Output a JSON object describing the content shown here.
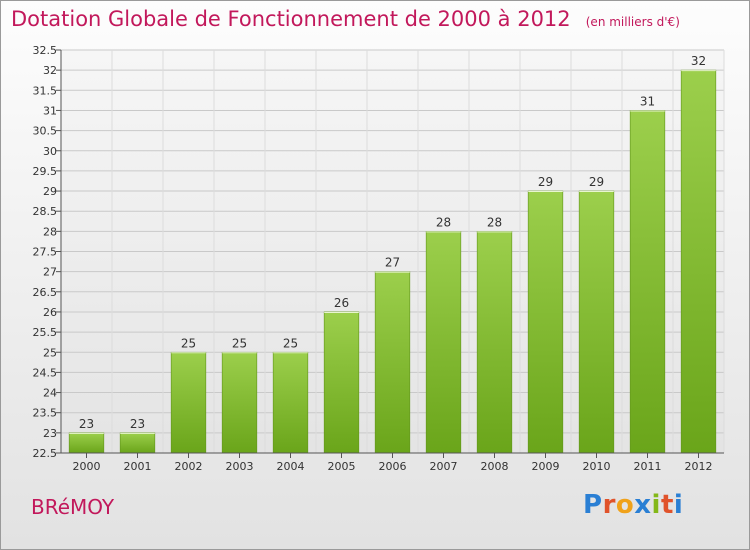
{
  "header": {
    "title": "Dotation Globale de Fonctionnement de 2000 à 2012",
    "unit": "(en milliers d'€)"
  },
  "footer": {
    "commune": "BRéMOY",
    "logo_letters": [
      "P",
      "r",
      "o",
      "x",
      "i",
      "t",
      "i"
    ],
    "logo_colors": [
      "#2a7fd4",
      "#e0532b",
      "#f0a21a",
      "#2a7fd4",
      "#84b819",
      "#e0532b",
      "#2a7fd4"
    ]
  },
  "chart_data": {
    "type": "bar",
    "title": "Dotation Globale de Fonctionnement de 2000 à 2012",
    "subtitle": "(en milliers d'€)",
    "categories": [
      "2000",
      "2001",
      "2002",
      "2003",
      "2004",
      "2005",
      "2006",
      "2007",
      "2008",
      "2009",
      "2010",
      "2011",
      "2012"
    ],
    "values": [
      23,
      23,
      25,
      25,
      25,
      26,
      27,
      28,
      28,
      29,
      29,
      31,
      32
    ],
    "data_labels": [
      "23",
      "23",
      "25",
      "25",
      "25",
      "26",
      "27",
      "28",
      "28",
      "29",
      "29",
      "31",
      "32"
    ],
    "ylim": [
      22.5,
      32.5
    ],
    "yticks": [
      22.5,
      23,
      23.5,
      24,
      24.5,
      25,
      25.5,
      26,
      26.5,
      27,
      27.5,
      28,
      28.5,
      29,
      29.5,
      30,
      30.5,
      31,
      31.5,
      32,
      32.5
    ],
    "ytick_labels": [
      "22.5",
      "23",
      "23.5",
      "24",
      "24.5",
      "25",
      "25.5",
      "26",
      "26.5",
      "27",
      "27.5",
      "28",
      "28.5",
      "29",
      "29.5",
      "30",
      "30.5",
      "31",
      "31.5",
      "32",
      "32.5"
    ],
    "grid": true,
    "xlabel": "",
    "ylabel": "",
    "bar_color_top": "#9ccf4c",
    "bar_color_bottom": "#6aa51a"
  }
}
